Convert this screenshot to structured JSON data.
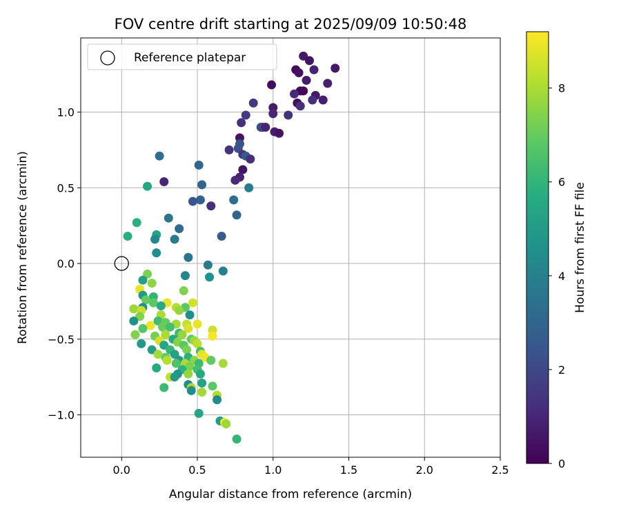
{
  "chart_data": {
    "type": "scatter",
    "title": "FOV centre drift starting at 2025/09/09 10:50:48",
    "xlabel": "Angular distance from reference (arcmin)",
    "ylabel": "Rotation from reference (arcmin)",
    "xlim": [
      -0.27,
      2.5
    ],
    "ylim": [
      -1.28,
      1.49
    ],
    "xticks": [
      0.0,
      0.5,
      1.0,
      1.5,
      2.0,
      2.5
    ],
    "xtick_labels": [
      "0.0",
      "0.5",
      "1.0",
      "1.5",
      "2.0",
      "2.5"
    ],
    "yticks": [
      -1.0,
      -0.5,
      0.0,
      0.5,
      1.0
    ],
    "ytick_labels": [
      "−1.0",
      "−0.5",
      "0.0",
      "0.5",
      "1.0"
    ],
    "grid": true,
    "legend": {
      "placement": "upper-left",
      "entries": [
        "Reference platepar"
      ]
    },
    "reference_point": {
      "x": 0.0,
      "y": 0.0,
      "marker": "open-circle"
    },
    "colorbar": {
      "label": "Hours from first FF file",
      "colormap": "viridis",
      "range": [
        0,
        9.2
      ],
      "ticks": [
        0,
        2,
        4,
        6,
        8
      ],
      "tick_labels": [
        "0",
        "2",
        "4",
        "6",
        "8"
      ]
    },
    "points": [
      {
        "x": 1.2,
        "y": 1.37,
        "h": 0.6
      },
      {
        "x": 1.24,
        "y": 1.34,
        "h": 0.5
      },
      {
        "x": 1.41,
        "y": 1.29,
        "h": 0.6
      },
      {
        "x": 1.15,
        "y": 1.28,
        "h": 0.3
      },
      {
        "x": 1.27,
        "y": 1.28,
        "h": 0.9
      },
      {
        "x": 1.17,
        "y": 1.26,
        "h": 0.4
      },
      {
        "x": 1.22,
        "y": 1.21,
        "h": 0.7
      },
      {
        "x": 1.36,
        "y": 1.19,
        "h": 0.8
      },
      {
        "x": 0.99,
        "y": 1.18,
        "h": 0.3
      },
      {
        "x": 1.18,
        "y": 1.14,
        "h": 0.2
      },
      {
        "x": 1.2,
        "y": 1.14,
        "h": 0.2
      },
      {
        "x": 1.14,
        "y": 1.12,
        "h": 1.1
      },
      {
        "x": 1.28,
        "y": 1.11,
        "h": 0.6
      },
      {
        "x": 1.26,
        "y": 1.08,
        "h": 1.2
      },
      {
        "x": 1.33,
        "y": 1.08,
        "h": 0.8
      },
      {
        "x": 1.16,
        "y": 1.06,
        "h": 0.4
      },
      {
        "x": 0.87,
        "y": 1.06,
        "h": 1.5
      },
      {
        "x": 1.18,
        "y": 1.04,
        "h": 1.2
      },
      {
        "x": 1.0,
        "y": 1.03,
        "h": 0.7
      },
      {
        "x": 1.0,
        "y": 0.99,
        "h": 1.0
      },
      {
        "x": 1.1,
        "y": 0.98,
        "h": 1.3
      },
      {
        "x": 0.82,
        "y": 0.98,
        "h": 1.6
      },
      {
        "x": 0.79,
        "y": 0.93,
        "h": 1.2
      },
      {
        "x": 0.93,
        "y": 0.9,
        "h": 0.8
      },
      {
        "x": 0.92,
        "y": 0.9,
        "h": 2.1
      },
      {
        "x": 0.95,
        "y": 0.9,
        "h": 0.9
      },
      {
        "x": 1.01,
        "y": 0.87,
        "h": 0.8
      },
      {
        "x": 1.04,
        "y": 0.86,
        "h": 0.5
      },
      {
        "x": 0.78,
        "y": 0.83,
        "h": 0.5
      },
      {
        "x": 0.77,
        "y": 0.76,
        "h": 2.2
      },
      {
        "x": 0.78,
        "y": 0.79,
        "h": 2.4
      },
      {
        "x": 0.71,
        "y": 0.75,
        "h": 1.3
      },
      {
        "x": 0.8,
        "y": 0.72,
        "h": 1.4
      },
      {
        "x": 0.82,
        "y": 0.71,
        "h": 2.6
      },
      {
        "x": 0.85,
        "y": 0.69,
        "h": 1.2
      },
      {
        "x": 0.8,
        "y": 0.62,
        "h": 0.5
      },
      {
        "x": 0.25,
        "y": 0.71,
        "h": 3.3
      },
      {
        "x": 0.51,
        "y": 0.65,
        "h": 3.0
      },
      {
        "x": 0.78,
        "y": 0.57,
        "h": 0.9
      },
      {
        "x": 0.75,
        "y": 0.55,
        "h": 1.1
      },
      {
        "x": 0.28,
        "y": 0.54,
        "h": 1.0
      },
      {
        "x": 0.53,
        "y": 0.52,
        "h": 3.0
      },
      {
        "x": 0.17,
        "y": 0.51,
        "h": 5.5
      },
      {
        "x": 0.84,
        "y": 0.5,
        "h": 3.8
      },
      {
        "x": 0.52,
        "y": 0.42,
        "h": 2.8
      },
      {
        "x": 0.47,
        "y": 0.41,
        "h": 2.4
      },
      {
        "x": 0.74,
        "y": 0.42,
        "h": 3.3
      },
      {
        "x": 0.59,
        "y": 0.38,
        "h": 1.2
      },
      {
        "x": 0.76,
        "y": 0.32,
        "h": 3.0
      },
      {
        "x": 0.31,
        "y": 0.3,
        "h": 3.6
      },
      {
        "x": 0.1,
        "y": 0.27,
        "h": 5.8
      },
      {
        "x": 0.38,
        "y": 0.23,
        "h": 3.2
      },
      {
        "x": 0.23,
        "y": 0.19,
        "h": 5.3
      },
      {
        "x": 0.04,
        "y": 0.18,
        "h": 5.8
      },
      {
        "x": 0.66,
        "y": 0.18,
        "h": 2.7
      },
      {
        "x": 0.22,
        "y": 0.16,
        "h": 4.2
      },
      {
        "x": 0.35,
        "y": 0.16,
        "h": 3.7
      },
      {
        "x": 0.23,
        "y": 0.07,
        "h": 4.4
      },
      {
        "x": 0.44,
        "y": 0.04,
        "h": 3.5
      },
      {
        "x": 0.57,
        "y": -0.01,
        "h": 3.8
      },
      {
        "x": 0.67,
        "y": -0.05,
        "h": 4.0
      },
      {
        "x": 0.42,
        "y": -0.08,
        "h": 4.1
      },
      {
        "x": 0.58,
        "y": -0.09,
        "h": 4.6
      },
      {
        "x": 0.17,
        "y": -0.07,
        "h": 7.3
      },
      {
        "x": 0.14,
        "y": -0.11,
        "h": 5.2
      },
      {
        "x": 0.2,
        "y": -0.13,
        "h": 7.6
      },
      {
        "x": 0.12,
        "y": -0.17,
        "h": 8.9
      },
      {
        "x": 0.41,
        "y": -0.18,
        "h": 7.4
      },
      {
        "x": 0.14,
        "y": -0.21,
        "h": 5.0
      },
      {
        "x": 0.21,
        "y": -0.22,
        "h": 6.0
      },
      {
        "x": 0.16,
        "y": -0.24,
        "h": 7.0
      },
      {
        "x": 0.21,
        "y": -0.26,
        "h": 6.8
      },
      {
        "x": 0.3,
        "y": -0.26,
        "h": 8.9
      },
      {
        "x": 0.47,
        "y": -0.26,
        "h": 8.6
      },
      {
        "x": 0.26,
        "y": -0.28,
        "h": 5.6
      },
      {
        "x": 0.14,
        "y": -0.29,
        "h": 4.5
      },
      {
        "x": 0.08,
        "y": -0.3,
        "h": 7.8
      },
      {
        "x": 0.36,
        "y": -0.29,
        "h": 8.2
      },
      {
        "x": 0.42,
        "y": -0.29,
        "h": 6.8
      },
      {
        "x": 0.38,
        "y": -0.31,
        "h": 7.7
      },
      {
        "x": 0.13,
        "y": -0.31,
        "h": 8.5
      },
      {
        "x": 0.26,
        "y": -0.34,
        "h": 8.0
      },
      {
        "x": 0.45,
        "y": -0.34,
        "h": 4.5
      },
      {
        "x": 0.12,
        "y": -0.35,
        "h": 7.4
      },
      {
        "x": 0.08,
        "y": -0.38,
        "h": 4.6
      },
      {
        "x": 0.24,
        "y": -0.38,
        "h": 6.3
      },
      {
        "x": 0.29,
        "y": -0.39,
        "h": 7.0
      },
      {
        "x": 0.36,
        "y": -0.4,
        "h": 7.9
      },
      {
        "x": 0.43,
        "y": -0.4,
        "h": 8.4
      },
      {
        "x": 0.5,
        "y": -0.4,
        "h": 8.9
      },
      {
        "x": 0.19,
        "y": -0.41,
        "h": 9.0
      },
      {
        "x": 0.27,
        "y": -0.42,
        "h": 7.1
      },
      {
        "x": 0.32,
        "y": -0.42,
        "h": 6.4
      },
      {
        "x": 0.44,
        "y": -0.43,
        "h": 8.7
      },
      {
        "x": 0.6,
        "y": -0.44,
        "h": 8.5
      },
      {
        "x": 0.14,
        "y": -0.43,
        "h": 6.7
      },
      {
        "x": 0.38,
        "y": -0.46,
        "h": 6.2
      },
      {
        "x": 0.09,
        "y": -0.47,
        "h": 7.4
      },
      {
        "x": 0.29,
        "y": -0.47,
        "h": 8.0
      },
      {
        "x": 0.4,
        "y": -0.47,
        "h": 7.7
      },
      {
        "x": 0.6,
        "y": -0.48,
        "h": 9.1
      },
      {
        "x": 0.22,
        "y": -0.48,
        "h": 7.2
      },
      {
        "x": 0.34,
        "y": -0.5,
        "h": 5.6
      },
      {
        "x": 0.46,
        "y": -0.5,
        "h": 6.9
      },
      {
        "x": 0.25,
        "y": -0.51,
        "h": 8.6
      },
      {
        "x": 0.48,
        "y": -0.51,
        "h": 7.8
      },
      {
        "x": 0.13,
        "y": -0.53,
        "h": 4.9
      },
      {
        "x": 0.37,
        "y": -0.52,
        "h": 7.5
      },
      {
        "x": 0.5,
        "y": -0.53,
        "h": 8.3
      },
      {
        "x": 0.28,
        "y": -0.54,
        "h": 5.4
      },
      {
        "x": 0.41,
        "y": -0.54,
        "h": 6.8
      },
      {
        "x": 0.2,
        "y": -0.57,
        "h": 5.1
      },
      {
        "x": 0.32,
        "y": -0.57,
        "h": 6.1
      },
      {
        "x": 0.43,
        "y": -0.57,
        "h": 7.3
      },
      {
        "x": 0.52,
        "y": -0.58,
        "h": 6.4
      },
      {
        "x": 0.24,
        "y": -0.6,
        "h": 7.9
      },
      {
        "x": 0.35,
        "y": -0.6,
        "h": 5.3
      },
      {
        "x": 0.53,
        "y": -0.6,
        "h": 8.8
      },
      {
        "x": 0.29,
        "y": -0.62,
        "h": 7.0
      },
      {
        "x": 0.44,
        "y": -0.62,
        "h": 5.8
      },
      {
        "x": 0.55,
        "y": -0.62,
        "h": 9.0
      },
      {
        "x": 0.3,
        "y": -0.64,
        "h": 8.2
      },
      {
        "x": 0.38,
        "y": -0.64,
        "h": 5.0
      },
      {
        "x": 0.48,
        "y": -0.64,
        "h": 7.6
      },
      {
        "x": 0.59,
        "y": -0.64,
        "h": 6.9
      },
      {
        "x": 0.36,
        "y": -0.66,
        "h": 6.6
      },
      {
        "x": 0.42,
        "y": -0.66,
        "h": 8.0
      },
      {
        "x": 0.51,
        "y": -0.66,
        "h": 6.2
      },
      {
        "x": 0.67,
        "y": -0.66,
        "h": 7.9
      },
      {
        "x": 0.45,
        "y": -0.68,
        "h": 7.3
      },
      {
        "x": 0.23,
        "y": -0.69,
        "h": 5.6
      },
      {
        "x": 0.4,
        "y": -0.7,
        "h": 5.9
      },
      {
        "x": 0.5,
        "y": -0.7,
        "h": 6.4
      },
      {
        "x": 0.37,
        "y": -0.73,
        "h": 4.8
      },
      {
        "x": 0.52,
        "y": -0.73,
        "h": 5.5
      },
      {
        "x": 0.44,
        "y": -0.73,
        "h": 7.7
      },
      {
        "x": 0.32,
        "y": -0.75,
        "h": 8.4
      },
      {
        "x": 0.35,
        "y": -0.75,
        "h": 4.9
      },
      {
        "x": 0.53,
        "y": -0.79,
        "h": 5.3
      },
      {
        "x": 0.44,
        "y": -0.8,
        "h": 4.3
      },
      {
        "x": 0.6,
        "y": -0.81,
        "h": 6.8
      },
      {
        "x": 0.28,
        "y": -0.82,
        "h": 6.2
      },
      {
        "x": 0.46,
        "y": -0.82,
        "h": 8.0
      },
      {
        "x": 0.46,
        "y": -0.84,
        "h": 4.4
      },
      {
        "x": 0.53,
        "y": -0.85,
        "h": 7.9
      },
      {
        "x": 0.63,
        "y": -0.87,
        "h": 8.1
      },
      {
        "x": 0.63,
        "y": -0.9,
        "h": 4.3
      },
      {
        "x": 0.51,
        "y": -0.99,
        "h": 5.4
      },
      {
        "x": 0.65,
        "y": -1.04,
        "h": 5.1
      },
      {
        "x": 0.68,
        "y": -1.05,
        "h": 9.1
      },
      {
        "x": 0.69,
        "y": -1.06,
        "h": 7.8
      },
      {
        "x": 0.76,
        "y": -1.16,
        "h": 6.0
      }
    ]
  }
}
